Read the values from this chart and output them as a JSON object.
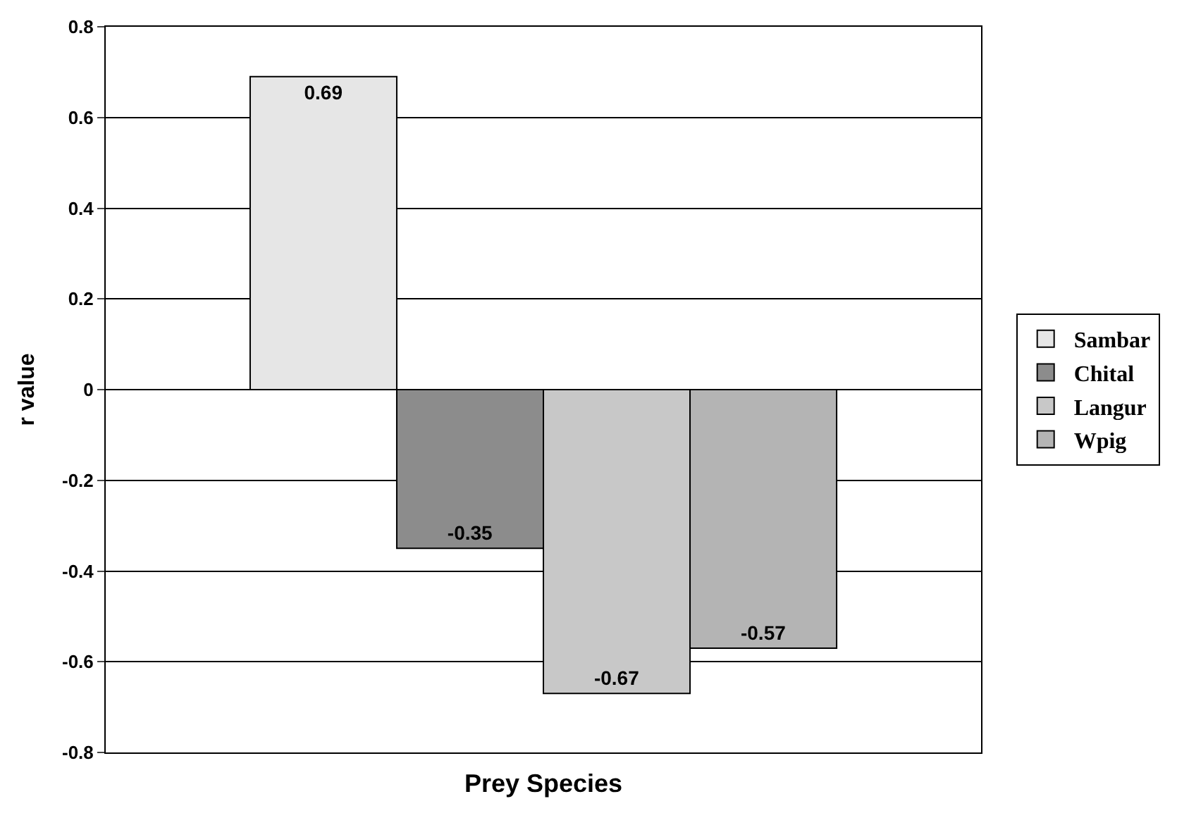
{
  "chart_data": {
    "type": "bar",
    "xlabel": "Prey Species",
    "ylabel": "r value",
    "categories": [
      null
    ],
    "series": [
      {
        "name": "Sambar",
        "color": "#e6e6e6",
        "values": [
          0.69
        ]
      },
      {
        "name": "Chital",
        "color": "#8c8c8c",
        "values": [
          -0.35
        ]
      },
      {
        "name": "Langur",
        "color": "#c8c8c8",
        "values": [
          -0.67
        ]
      },
      {
        "name": "Wpig",
        "color": "#b4b4b4",
        "values": [
          -0.57
        ]
      }
    ],
    "ylim": [
      -0.8,
      0.8
    ],
    "yticks": [
      -0.8,
      -0.6,
      -0.4,
      -0.2,
      0,
      0.2,
      0.4,
      0.6,
      0.8
    ],
    "grid": "y",
    "legend": "right",
    "data_labels": true,
    "tick_labels": "y"
  }
}
